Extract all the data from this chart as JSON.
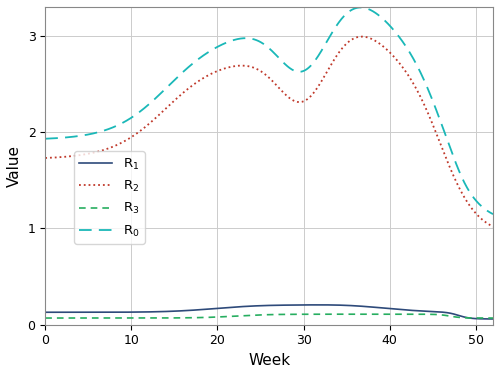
{
  "title": "",
  "xlabel": "Week",
  "ylabel": "Value",
  "xlim": [
    0,
    52
  ],
  "ylim": [
    0,
    3.3
  ],
  "xticks": [
    0,
    10,
    20,
    30,
    40,
    50
  ],
  "yticks": [
    0,
    1,
    2,
    3
  ],
  "background_color": "#ffffff",
  "grid_color": "#cccccc",
  "R1_color": "#2e4a7a",
  "R2_color": "#c0392b",
  "R3_color": "#27ae60",
  "R0_color": "#1ab8b8",
  "legend_labels": [
    "R$_1$",
    "R$_2$",
    "R$_3$",
    "R$_0$"
  ],
  "figsize": [
    5.0,
    3.75
  ],
  "dpi": 100
}
